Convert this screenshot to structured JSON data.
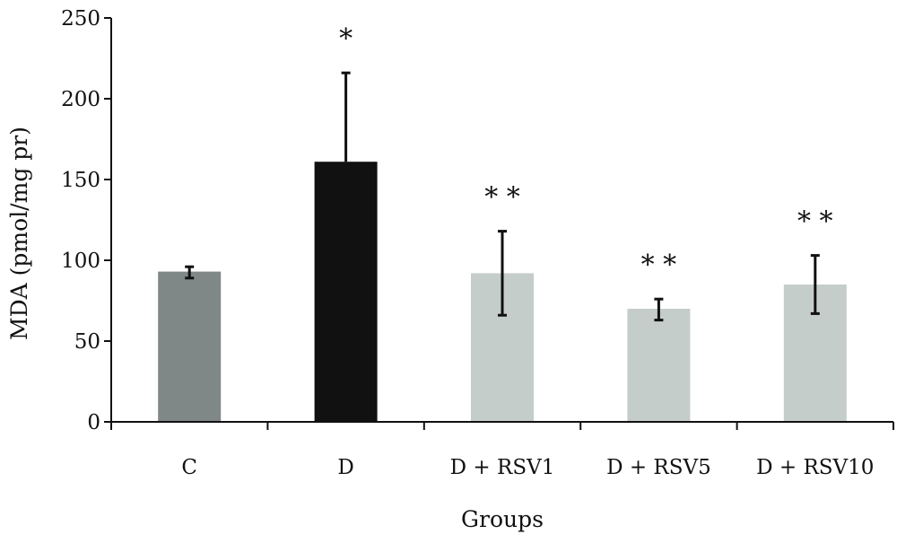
{
  "chart_data": {
    "type": "bar",
    "xlabel": "Groups",
    "ylabel": "MDA (pmol/mg pr)",
    "ylim": [
      0,
      250
    ],
    "yticks": [
      0,
      50,
      100,
      150,
      200,
      250
    ],
    "grid": false,
    "legend": "none",
    "categories": [
      "C",
      "D",
      "D + RSV1",
      "D + RSV5",
      "D + RSV10"
    ],
    "values": [
      93,
      161,
      92,
      70,
      85
    ],
    "error_upper": [
      96,
      216,
      118,
      76,
      103
    ],
    "error_lower": [
      89,
      null,
      66,
      63,
      67
    ],
    "significance": [
      "",
      "*",
      "**",
      "**",
      "**"
    ],
    "colors": [
      "#7f8787",
      "#111111",
      "#c5cdcb",
      "#c5cdcb",
      "#c5cdcb"
    ]
  }
}
